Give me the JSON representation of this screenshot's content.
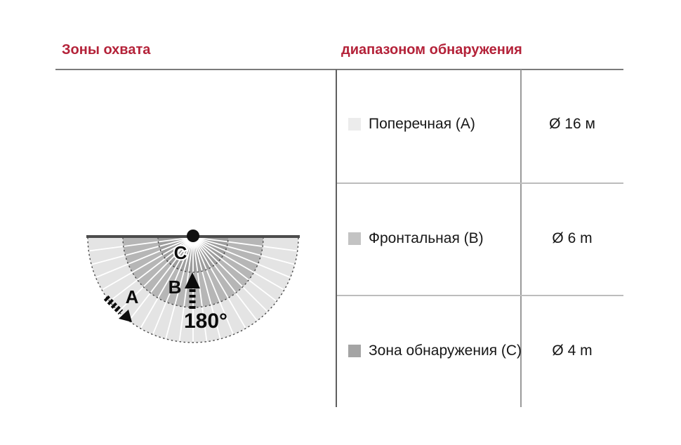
{
  "header": {
    "left_title": "Зоны охвата",
    "right_title": "диапазоном обнаружения",
    "accent_color": "#b42239"
  },
  "diagram": {
    "angle_label": "180°",
    "zone_a_label": "A",
    "zone_b_label": "B",
    "zone_c_label": "C",
    "zone_a_color": "#e4e4e4",
    "zone_b_color": "#b6b6b6",
    "zone_c_color": "#9d9d9d"
  },
  "table": {
    "rows": [
      {
        "swatch_color": "#ececec",
        "label": "Поперечная (А)",
        "value": "Ø 16 м"
      },
      {
        "swatch_color": "#c3c3c3",
        "label": "Фронтальная (В)",
        "value": "Ø 6 m"
      },
      {
        "swatch_color": "#a4a4a4",
        "label": "Зона обнаружения (С)",
        "value": "Ø 4 m"
      }
    ]
  }
}
